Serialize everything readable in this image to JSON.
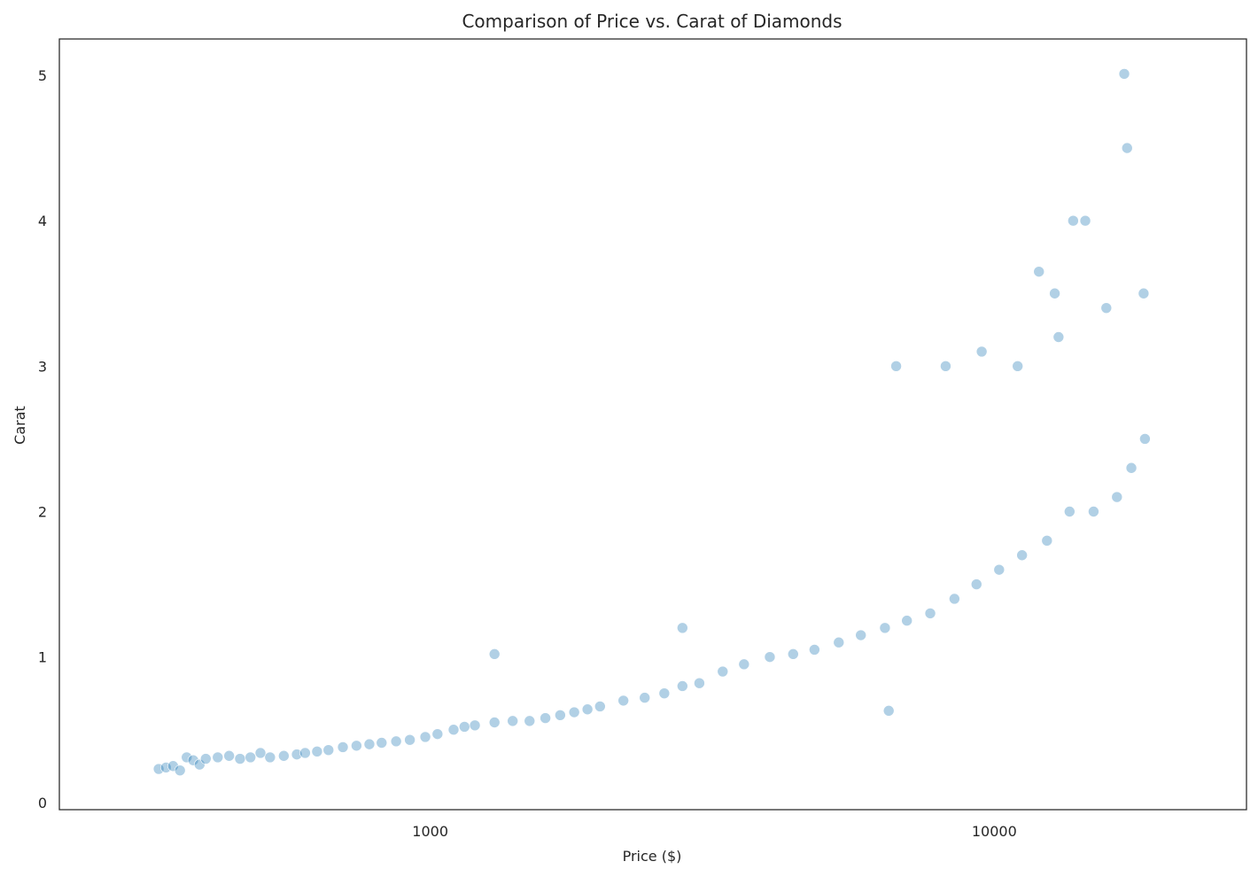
{
  "chart_data": {
    "type": "scatter",
    "title": "Comparison of Price vs. Carat of Diamonds",
    "xlabel": "Price ($)",
    "ylabel": "Carat",
    "xscale": "log",
    "xlim": [
      220,
      28000
    ],
    "ylim": [
      -0.05,
      5.25
    ],
    "xticks": [
      1000,
      10000
    ],
    "xtick_labels": [
      "1000",
      "10000"
    ],
    "yticks": [
      0,
      1,
      2,
      3,
      4,
      5
    ],
    "ytick_labels": [
      "0",
      "1",
      "2",
      "3",
      "4",
      "5"
    ],
    "grid": false,
    "legend": "none",
    "marker_color": "#1f77b4",
    "marker_edge_color": "#ffffff",
    "marker_alpha": 0.06,
    "series": [
      {
        "points": [
          [
            330,
            0.23
          ],
          [
            340,
            0.24
          ],
          [
            350,
            0.25
          ],
          [
            360,
            0.22
          ],
          [
            370,
            0.31
          ],
          [
            380,
            0.29
          ],
          [
            390,
            0.26
          ],
          [
            400,
            0.3
          ],
          [
            420,
            0.31
          ],
          [
            440,
            0.32
          ],
          [
            460,
            0.3
          ],
          [
            480,
            0.31
          ],
          [
            500,
            0.34
          ],
          [
            520,
            0.31
          ],
          [
            550,
            0.32
          ],
          [
            580,
            0.33
          ],
          [
            600,
            0.34
          ],
          [
            630,
            0.35
          ],
          [
            660,
            0.36
          ],
          [
            700,
            0.38
          ],
          [
            740,
            0.39
          ],
          [
            780,
            0.4
          ],
          [
            820,
            0.41
          ],
          [
            870,
            0.42
          ],
          [
            920,
            0.43
          ],
          [
            980,
            0.45
          ],
          [
            1030,
            0.47
          ],
          [
            1100,
            0.5
          ],
          [
            1150,
            0.52
          ],
          [
            1200,
            0.53
          ],
          [
            1300,
            0.55
          ],
          [
            1400,
            0.56
          ],
          [
            1500,
            0.56
          ],
          [
            1600,
            0.58
          ],
          [
            1700,
            0.6
          ],
          [
            1800,
            0.62
          ],
          [
            1900,
            0.64
          ],
          [
            2000,
            0.66
          ],
          [
            2200,
            0.7
          ],
          [
            2400,
            0.72
          ],
          [
            2600,
            0.75
          ],
          [
            2800,
            0.8
          ],
          [
            3000,
            0.82
          ],
          [
            3300,
            0.9
          ],
          [
            3600,
            0.95
          ],
          [
            4000,
            1.0
          ],
          [
            4400,
            1.02
          ],
          [
            4800,
            1.05
          ],
          [
            5300,
            1.1
          ],
          [
            5800,
            1.15
          ],
          [
            6400,
            1.2
          ],
          [
            7000,
            1.25
          ],
          [
            7700,
            1.3
          ],
          [
            8500,
            1.4
          ],
          [
            9300,
            1.5
          ],
          [
            10200,
            1.6
          ],
          [
            11200,
            1.7
          ],
          [
            12400,
            1.8
          ],
          [
            13600,
            2.0
          ],
          [
            15000,
            2.0
          ],
          [
            16500,
            2.1
          ],
          [
            17500,
            2.3
          ],
          [
            18500,
            2.5
          ],
          [
            6500,
            0.63
          ],
          [
            2800,
            1.2
          ],
          [
            1300,
            1.02
          ],
          [
            9500,
            3.1
          ],
          [
            13800,
            4.0
          ],
          [
            14500,
            4.0
          ],
          [
            17200,
            4.5
          ],
          [
            17000,
            5.01
          ],
          [
            12000,
            3.65
          ],
          [
            15800,
            3.4
          ],
          [
            18400,
            3.5
          ],
          [
            13000,
            3.2
          ],
          [
            8200,
            3.0
          ],
          [
            6700,
            3.0
          ],
          [
            11000,
            3.0
          ],
          [
            12800,
            3.5
          ]
        ]
      }
    ]
  }
}
